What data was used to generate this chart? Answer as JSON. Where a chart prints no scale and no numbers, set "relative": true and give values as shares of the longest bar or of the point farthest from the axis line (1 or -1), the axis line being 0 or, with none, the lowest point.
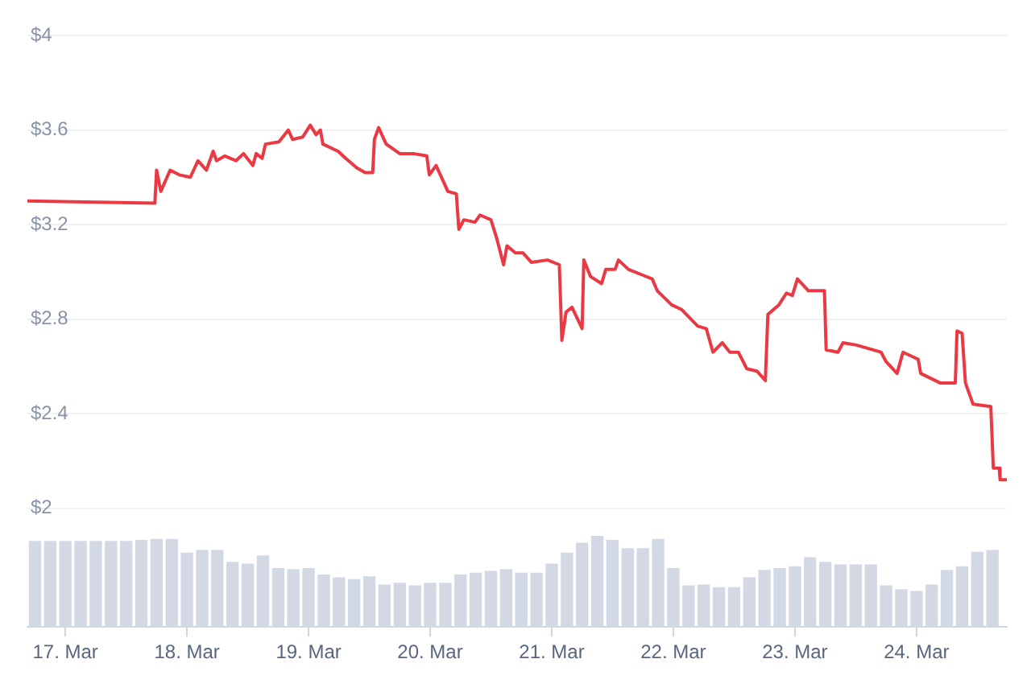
{
  "chart_data": [
    {
      "type": "line",
      "color": "#ea3943",
      "marker": "none",
      "grid": "y",
      "tick_labels": "y",
      "x": [
        "--03-16T16:30",
        "--03-17T17:40",
        "--03-17T18:00",
        "--03-17T18:50",
        "--03-17T20:40",
        "--03-17T22:30",
        "--03-18T00:40",
        "--03-18T02:10",
        "--03-18T03:50",
        "--03-18T05:10",
        "--03-18T05:50",
        "--03-18T07:30",
        "--03-18T09:40",
        "--03-18T11:10",
        "--03-18T13:00",
        "--03-18T13:40",
        "--03-18T14:50",
        "--03-18T15:30",
        "--03-18T18:10",
        "--03-18T20:00",
        "--03-18T20:50",
        "--03-18T22:50",
        "--03-19T00:20",
        "--03-19T01:30",
        "--03-19T02:20",
        "--03-19T02:50",
        "--03-19T05:50",
        "--03-19T07:20",
        "--03-19T09:30",
        "--03-19T11:10",
        "--03-19T12:40",
        "--03-19T13:00",
        "--03-19T13:50",
        "--03-19T15:20",
        "--03-19T18:00",
        "--03-19T20:40",
        "--03-19T23:20",
        "--03-19T23:50",
        "--03-20T01:10",
        "--03-20T03:30",
        "--03-20T05:10",
        "--03-20T05:40",
        "--03-20T06:40",
        "--03-20T08:50",
        "--03-20T09:50",
        "--03-20T12:00",
        "--03-20T13:10",
        "--03-20T14:30",
        "--03-20T15:10",
        "--03-20T16:50",
        "--03-20T17:50",
        "--03-20T18:20",
        "--03-20T20:00",
        "--03-20T23:10",
        "--03-21T01:30",
        "--03-21T02:00",
        "--03-21T02:50",
        "--03-21T04:00",
        "--03-21T06:00",
        "--03-21T06:20",
        "--03-21T07:40",
        "--03-21T09:50",
        "--03-21T10:40",
        "--03-21T12:30",
        "--03-21T13:10",
        "--03-21T15:10",
        "--03-21T17:30",
        "--03-21T19:50",
        "--03-21T20:50",
        "--03-21T23:40",
        "--03-22T01:40",
        "--03-22T04:50",
        "--03-22T06:30",
        "--03-22T07:50",
        "--03-22T09:40",
        "--03-22T11:10",
        "--03-22T12:50",
        "--03-22T14:30",
        "--03-22T16:30",
        "--03-22T18:10",
        "--03-22T18:40",
        "--03-22T20:50",
        "--03-22T22:20",
        "--03-22T23:30",
        "--03-23T00:30",
        "--03-23T02:40",
        "--03-23T05:50",
        "--03-23T06:10",
        "--03-23T08:30",
        "--03-23T09:30",
        "--03-23T12:10",
        "--03-23T17:00",
        "--03-23T18:00",
        "--03-23T20:10",
        "--03-23T21:20",
        "--03-24T00:20",
        "--03-24T00:50",
        "--03-24T04:40",
        "--03-24T07:40",
        "--03-24T08:00",
        "--03-24T09:00",
        "--03-24T09:40",
        "--03-24T11:10",
        "--03-24T14:40",
        "--03-24T15:10",
        "--03-24T16:20",
        "--03-24T16:30",
        "--03-24T17:50"
      ],
      "values": [
        3.3,
        3.29,
        3.43,
        3.34,
        3.43,
        3.41,
        3.4,
        3.47,
        3.43,
        3.51,
        3.47,
        3.49,
        3.47,
        3.5,
        3.45,
        3.5,
        3.48,
        3.54,
        3.55,
        3.6,
        3.56,
        3.57,
        3.62,
        3.58,
        3.6,
        3.54,
        3.51,
        3.48,
        3.44,
        3.42,
        3.42,
        3.56,
        3.61,
        3.54,
        3.5,
        3.5,
        3.49,
        3.41,
        3.45,
        3.34,
        3.33,
        3.18,
        3.22,
        3.21,
        3.24,
        3.22,
        3.14,
        3.03,
        3.11,
        3.08,
        3.08,
        3.08,
        3.04,
        3.05,
        3.03,
        2.71,
        2.83,
        2.85,
        2.76,
        3.05,
        2.98,
        2.95,
        3.01,
        3.01,
        3.05,
        3.01,
        2.99,
        2.97,
        2.92,
        2.86,
        2.84,
        2.77,
        2.76,
        2.66,
        2.7,
        2.66,
        2.66,
        2.59,
        2.58,
        2.54,
        2.82,
        2.86,
        2.91,
        2.9,
        2.97,
        2.92,
        2.92,
        2.67,
        2.66,
        2.7,
        2.69,
        2.66,
        2.62,
        2.57,
        2.66,
        2.63,
        2.57,
        2.53,
        2.53,
        2.75,
        2.74,
        2.53,
        2.44,
        2.43,
        2.17,
        2.17,
        2.12,
        2.12
      ],
      "xlim": [
        "--03-16T16:30",
        "--03-24T17:50"
      ],
      "ylim": [
        2,
        4
      ],
      "yticks": [
        {
          "value": 2,
          "label": "$2"
        },
        {
          "value": 2.4,
          "label": "$2.4"
        },
        {
          "value": 2.8,
          "label": "$2.8"
        },
        {
          "value": 3.2,
          "label": "$3.2"
        },
        {
          "value": 3.6,
          "label": "$3.6"
        },
        {
          "value": 4,
          "label": "$4"
        }
      ]
    },
    {
      "type": "bar",
      "color": "#d3d8e5",
      "relative": true,
      "tick_labels": "x",
      "x": [
        "--03-16T18:00",
        "--03-16T21:00",
        "--03-17T00:00",
        "--03-17T03:00",
        "--03-17T06:00",
        "--03-17T09:00",
        "--03-17T12:00",
        "--03-17T15:00",
        "--03-17T18:00",
        "--03-17T21:00",
        "--03-18T00:00",
        "--03-18T03:00",
        "--03-18T06:00",
        "--03-18T09:00",
        "--03-18T12:00",
        "--03-18T15:00",
        "--03-18T18:00",
        "--03-18T21:00",
        "--03-19T00:00",
        "--03-19T03:00",
        "--03-19T06:00",
        "--03-19T09:00",
        "--03-19T12:00",
        "--03-19T15:00",
        "--03-19T18:00",
        "--03-19T21:00",
        "--03-20T00:00",
        "--03-20T03:00",
        "--03-20T06:00",
        "--03-20T09:00",
        "--03-20T12:00",
        "--03-20T15:00",
        "--03-20T18:00",
        "--03-20T21:00",
        "--03-21T00:00",
        "--03-21T03:00",
        "--03-21T06:00",
        "--03-21T09:00",
        "--03-21T12:00",
        "--03-21T15:00",
        "--03-21T18:00",
        "--03-21T21:00",
        "--03-22T00:00",
        "--03-22T03:00",
        "--03-22T06:00",
        "--03-22T09:00",
        "--03-22T12:00",
        "--03-22T15:00",
        "--03-22T18:00",
        "--03-22T21:00",
        "--03-23T00:00",
        "--03-23T03:00",
        "--03-23T06:00",
        "--03-23T09:00",
        "--03-23T12:00",
        "--03-23T15:00",
        "--03-23T18:00",
        "--03-23T21:00",
        "--03-24T00:00",
        "--03-24T03:00",
        "--03-24T06:00",
        "--03-24T09:00",
        "--03-24T12:00",
        "--03-24T15:00"
      ],
      "values": [
        0.94,
        0.94,
        0.94,
        0.94,
        0.94,
        0.94,
        0.94,
        0.95,
        0.96,
        0.96,
        0.81,
        0.84,
        0.84,
        0.71,
        0.69,
        0.78,
        0.64,
        0.63,
        0.64,
        0.57,
        0.54,
        0.52,
        0.55,
        0.46,
        0.48,
        0.45,
        0.48,
        0.48,
        0.57,
        0.59,
        0.61,
        0.63,
        0.59,
        0.59,
        0.69,
        0.81,
        0.92,
        1,
        0.95,
        0.86,
        0.86,
        0.96,
        0.64,
        0.45,
        0.46,
        0.43,
        0.43,
        0.54,
        0.62,
        0.64,
        0.66,
        0.76,
        0.71,
        0.68,
        0.68,
        0.68,
        0.45,
        0.41,
        0.39,
        0.46,
        0.62,
        0.66,
        0.82,
        0.84
      ],
      "xlim": [
        "--03-16T16:30",
        "--03-24T17:50"
      ],
      "xticks": [
        {
          "value": "--03-17",
          "label": "17. Mar"
        },
        {
          "value": "--03-18",
          "label": "18. Mar"
        },
        {
          "value": "--03-19",
          "label": "19. Mar"
        },
        {
          "value": "--03-20",
          "label": "20. Mar"
        },
        {
          "value": "--03-21",
          "label": "21. Mar"
        },
        {
          "value": "--03-22",
          "label": "22. Mar"
        },
        {
          "value": "--03-23",
          "label": "23. Mar"
        },
        {
          "value": "--03-24",
          "label": "24. Mar"
        }
      ]
    }
  ]
}
